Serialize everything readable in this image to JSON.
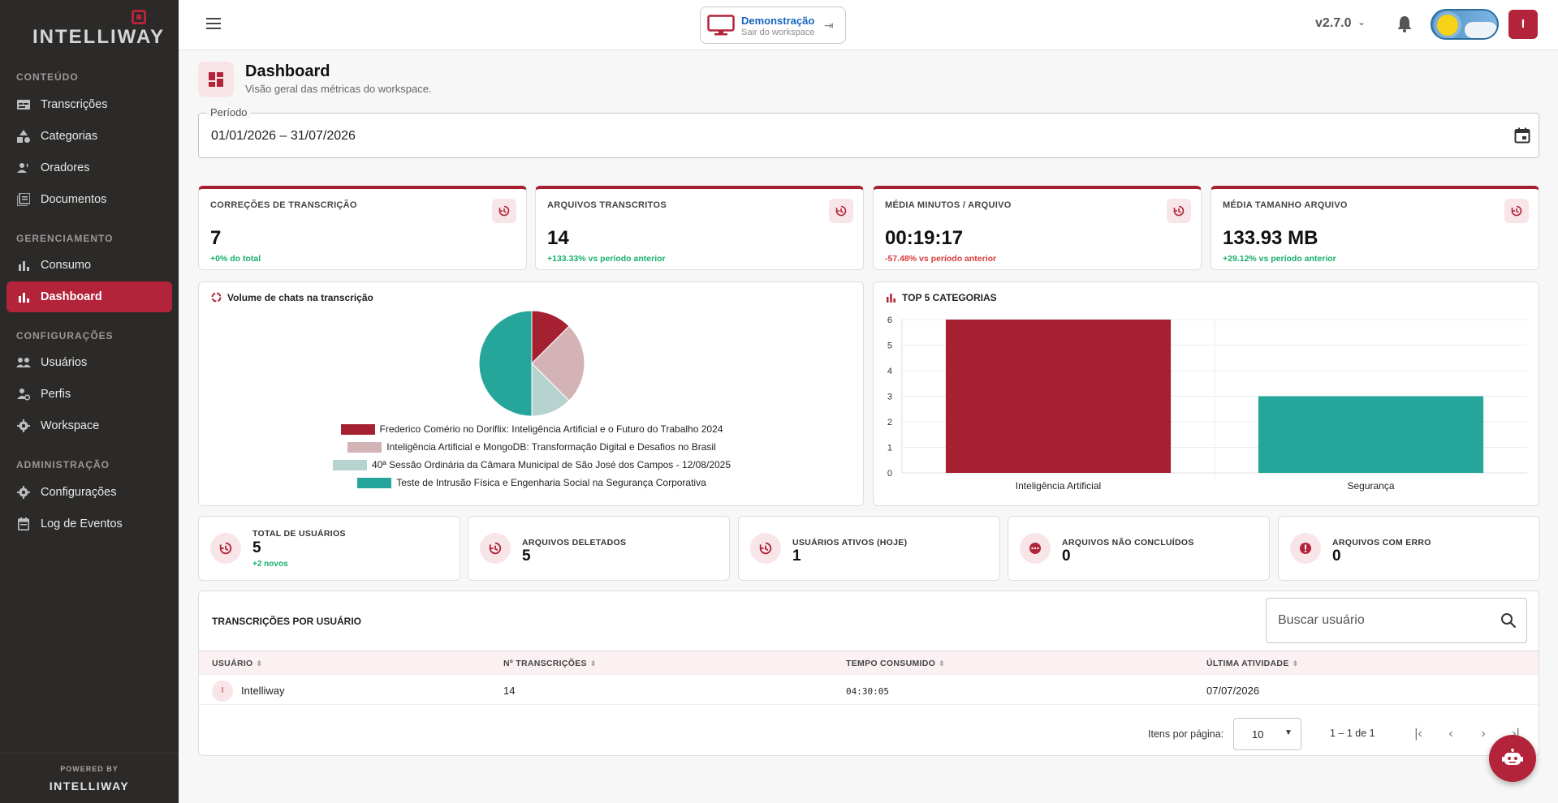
{
  "brand": {
    "logo": "INTELLIWAY",
    "powered_by": "POWERED BY",
    "footer_logo": "INTELLIWAY",
    "accent": "#b3233a"
  },
  "sidebar": {
    "sections": [
      {
        "title": "CONTEÚDO",
        "items": [
          {
            "label": "Transcrições",
            "icon": "transcription-icon"
          },
          {
            "label": "Categorias",
            "icon": "categories-icon"
          },
          {
            "label": "Oradores",
            "icon": "speakers-icon"
          },
          {
            "label": "Documentos",
            "icon": "documents-icon"
          }
        ]
      },
      {
        "title": "GERENCIAMENTO",
        "items": [
          {
            "label": "Consumo",
            "icon": "bar-chart-icon"
          },
          {
            "label": "Dashboard",
            "icon": "bar-chart-icon",
            "active": true
          }
        ]
      },
      {
        "title": "CONFIGURAÇÕES",
        "items": [
          {
            "label": "Usuários",
            "icon": "users-icon"
          },
          {
            "label": "Perfis",
            "icon": "profile-gear-icon"
          },
          {
            "label": "Workspace",
            "icon": "gear-icon"
          }
        ]
      },
      {
        "title": "ADMINISTRAÇÃO",
        "items": [
          {
            "label": "Configurações",
            "icon": "gear-icon"
          },
          {
            "label": "Log de Eventos",
            "icon": "calendar-log-icon"
          }
        ]
      }
    ]
  },
  "topbar": {
    "workspace_name": "Demonstração",
    "workspace_sub": "Sair do workspace",
    "version": "v2.7.0"
  },
  "user": {
    "initial": "I"
  },
  "header": {
    "title": "Dashboard",
    "subtitle": "Visão geral das métricas do workspace."
  },
  "period": {
    "label": "Período",
    "value": "01/01/2026  – 31/07/2026"
  },
  "stats": [
    {
      "label": "CORREÇÕES DE TRANSCRIÇÃO",
      "value": "7",
      "delta": "+0% do total",
      "trend": "up"
    },
    {
      "label": "ARQUIVOS TRANSCRITOS",
      "value": "14",
      "delta": "+133.33% vs período anterior",
      "trend": "up"
    },
    {
      "label": "MÉDIA MINUTOS / ARQUIVO",
      "value": "00:19:17",
      "delta": "-57.48% vs período anterior",
      "trend": "down"
    },
    {
      "label": "MÉDIA TAMANHO ARQUIVO",
      "value": "133.93 MB",
      "delta": "+29.12% vs período anterior",
      "trend": "up"
    }
  ],
  "pie_panel": {
    "title": "Volume de chats na transcrição"
  },
  "bar_panel": {
    "title": "TOP 5 CATEGORIAS"
  },
  "chart_data": [
    {
      "type": "pie",
      "title": "Volume de chats na transcrição",
      "labels": [
        "Frederico Comério no Doriflix: Inteligência Artificial e o Futuro do Trabalho 2024",
        "Inteligência Artificial e MongoDB: Transformação Digital e Desafios no Brasil",
        "40ª Sessão Ordinária da Câmara Municipal de São José dos Campos - 12/08/2025",
        "Teste de Intrusão Física e Engenharia Social na Segurança Corporativa"
      ],
      "values": [
        12.5,
        25,
        12.5,
        50
      ],
      "colors": [
        "#a52031",
        "#d4b3b7",
        "#b7d3cf",
        "#26a69a"
      ],
      "legend": "bottom"
    },
    {
      "type": "bar",
      "title": "TOP 5 CATEGORIAS",
      "categories": [
        "Inteligência Artificial",
        "Segurança"
      ],
      "values": [
        6,
        3
      ],
      "colors": [
        "#a52031",
        "#26a69a"
      ],
      "ylim": [
        0,
        6
      ],
      "yticks": [
        "0",
        "1",
        "2",
        "3",
        "4",
        "5",
        "6"
      ],
      "grid": true
    }
  ],
  "mini_stats": [
    {
      "label": "TOTAL DE USUÁRIOS",
      "value": "5",
      "delta": "+2 novos",
      "icon": "history-icon"
    },
    {
      "label": "ARQUIVOS DELETADOS",
      "value": "5",
      "icon": "history-icon"
    },
    {
      "label": "USUÁRIOS ATIVOS (HOJE)",
      "value": "1",
      "icon": "history-icon"
    },
    {
      "label": "ARQUIVOS NÃO CONCLUÍDOS",
      "value": "0",
      "icon": "pending-icon"
    },
    {
      "label": "ARQUIVOS COM ERRO",
      "value": "0",
      "icon": "error-icon"
    }
  ],
  "table": {
    "title": "TRANSCRIÇÕES POR USUÁRIO",
    "search_placeholder": "Buscar usuário",
    "columns": [
      "USUÁRIO",
      "Nº TRANSCRIÇÕES",
      "TEMPO CONSUMIDO",
      "ÚLTIMA ATIVIDADE"
    ],
    "rows": [
      {
        "initial": "I",
        "user": "Intelliway",
        "count": "14",
        "time": "04:30:05",
        "last": "07/07/2026"
      }
    ],
    "items_per_page_label": "Itens por página:",
    "items_per_page": "10",
    "range": "1 – 1 de 1"
  }
}
